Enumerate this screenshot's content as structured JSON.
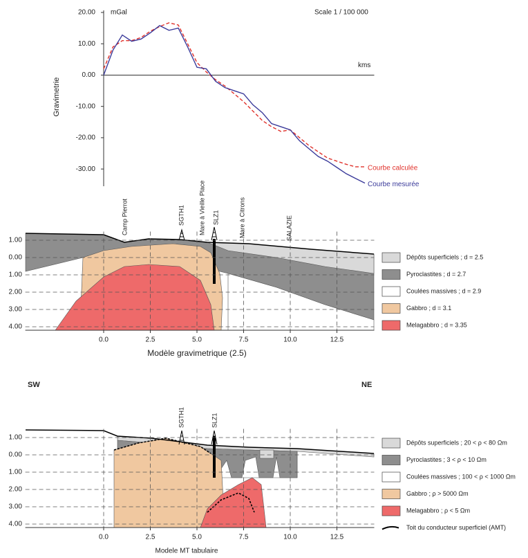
{
  "chart_data": [
    {
      "type": "line",
      "y_label": "Gravimetrie",
      "unit": "mGal",
      "scale_note": "Scale 1 / 100 000",
      "x_label": "kms",
      "x": [
        0,
        0.5,
        1,
        1.5,
        2,
        2.5,
        3,
        3.5,
        4,
        4.5,
        5,
        5.5,
        6,
        6.5,
        7,
        7.5,
        8,
        8.5,
        9,
        9.5,
        10,
        10.5,
        11,
        11.5,
        12,
        12.5,
        13,
        13.5,
        14
      ],
      "xlim": [
        0,
        14.5
      ],
      "ylim": [
        -35.5,
        20
      ],
      "yticks": [
        {
          "value": 20,
          "label": "20.00"
        },
        {
          "value": 10,
          "label": "10.00"
        },
        {
          "value": 0,
          "label": "0.00"
        },
        {
          "value": -10,
          "label": "-10.00"
        },
        {
          "value": -20,
          "label": "-20.00"
        },
        {
          "value": -30,
          "label": "-30.00"
        }
      ],
      "series": [
        {
          "name": "Courbe calculée",
          "color": "#e0302a",
          "dashed": true,
          "values": [
            2,
            9,
            11,
            11,
            12,
            14,
            15.5,
            16.7,
            16,
            10,
            4,
            1,
            -1.5,
            -3.5,
            -6,
            -8.5,
            -11.5,
            -14.5,
            -16.5,
            -18,
            -17.5,
            -20,
            -22.5,
            -24.5,
            -26.5,
            -27.5,
            -28.5,
            -29.3,
            -29.3
          ]
        },
        {
          "name": "Courbe mesurée",
          "color": "#3a3a9a",
          "dashed": false,
          "values": [
            0,
            8,
            12.8,
            10.8,
            11.5,
            13.5,
            15.8,
            14.3,
            15,
            9,
            2.5,
            2,
            -2,
            -4,
            -5,
            -6,
            -9.5,
            -12,
            -15.5,
            -16.5,
            -17.5,
            -21,
            -23.5,
            -26,
            -27.5,
            -29.5,
            -31.5,
            -33,
            -34.5
          ]
        }
      ]
    },
    {
      "type": "cross-section",
      "x_label": "Modèle gravimetrique (2.5)",
      "xlim": [
        -4.2,
        14.5
      ],
      "ylim": [
        -4.2,
        1.5
      ],
      "xticks": [
        {
          "value": 0,
          "label": "0.0"
        },
        2.5,
        {
          "value": 5,
          "label": "5.0"
        },
        7.5,
        {
          "value": 10,
          "label": "10.0"
        },
        12.5
      ],
      "yticks": [
        {
          "value": 1,
          "label": "1.00"
        },
        {
          "value": 0,
          "label": "0.00"
        },
        {
          "value": -1,
          "label": "1.00"
        },
        {
          "value": -2,
          "label": "2.00"
        },
        {
          "value": -3,
          "label": "3.00"
        },
        {
          "value": -4,
          "label": "4.00"
        }
      ],
      "grid": true,
      "annotations": [
        "Camp Pierrot",
        "SGTH1",
        "Mare à Vieille Place",
        "SLZ1",
        "Mare à Citrons",
        "SALAZIE"
      ],
      "legend": [
        {
          "label": "Dépôts superficiels ; d = 2.5",
          "color": "#d9d9d9"
        },
        {
          "label": "Pyroclastites ; d = 2.7",
          "color": "#8e8e8e"
        },
        {
          "label": "Coulées massives ; d = 2.9",
          "color": "#ffffff"
        },
        {
          "label": "Gabbro ; d = 3.1",
          "color": "#f0c8a0"
        },
        {
          "label": "Melagabbro ; d = 3.35",
          "color": "#ee6a6a"
        }
      ]
    },
    {
      "type": "cross-section",
      "x_label": "Modele MT tabulaire",
      "left_label": "SW",
      "right_label": "NE",
      "xlim": [
        -4.2,
        14.5
      ],
      "ylim": [
        -4.2,
        1.5
      ],
      "xticks": [
        {
          "value": 0,
          "label": "0.0"
        },
        2.5,
        {
          "value": 5,
          "label": "5.0"
        },
        7.5,
        {
          "value": 10,
          "label": "10.0"
        },
        12.5
      ],
      "yticks": [
        {
          "value": 1,
          "label": "1.00"
        },
        {
          "value": 0,
          "label": "0.00"
        },
        {
          "value": -1,
          "label": "1.00"
        },
        {
          "value": -2,
          "label": "2.00"
        },
        {
          "value": -3,
          "label": "3.00"
        },
        {
          "value": -4,
          "label": "4.00"
        }
      ],
      "grid": true,
      "annotations": [
        "SGTH1",
        "SLZ1"
      ],
      "legend": [
        {
          "label": "Dépôts superficiels ; 20 < ρ < 80 Ωm",
          "color": "#d9d9d9"
        },
        {
          "label": "Pyroclastites ; 3 < ρ < 10 Ωm",
          "color": "#8e8e8e"
        },
        {
          "label": "Coulées massives ; 100 < ρ < 1000 Ωm",
          "color": "#ffffff"
        },
        {
          "label": "Gabbro ; ρ > 5000 Ωm",
          "color": "#f0c8a0"
        },
        {
          "label": "Melagabbro ; ρ < 5 Ωm",
          "color": "#ee6a6a"
        },
        {
          "label": "Toit du conducteur superficiel (AMT)",
          "color": "#000000",
          "kind": "line"
        }
      ]
    }
  ]
}
